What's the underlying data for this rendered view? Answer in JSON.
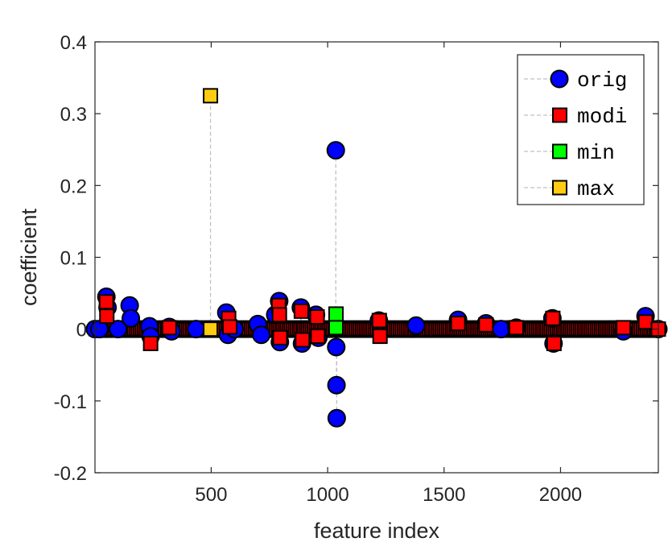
{
  "chart_data": {
    "type": "scatter",
    "subtype": "stem",
    "title": "",
    "xlabel": "feature index",
    "ylabel": "coefficient",
    "xlim": [
      1,
      2420
    ],
    "ylim": [
      -0.2,
      0.4
    ],
    "xticks": [
      500,
      1000,
      1500,
      2000
    ],
    "yticks": [
      -0.2,
      -0.1,
      0,
      0.1,
      0.2,
      0.3,
      0.4
    ],
    "xtick_labels": [
      "500",
      "1000",
      "1500",
      "2000"
    ],
    "ytick_labels": [
      "-0.2",
      "-0.1",
      "0",
      "0.1",
      "0.2",
      "0.3",
      "0.4"
    ],
    "grid": false,
    "legend_position": "top-right",
    "stem_color": "#c0c0c0",
    "series": [
      {
        "name": "orig",
        "marker": "circle",
        "color": "#0000ff",
        "points": [
          {
            "x": 1,
            "y": 0
          },
          {
            "x": 20,
            "y": 0
          },
          {
            "x": 50,
            "y": 0.045
          },
          {
            "x": 55,
            "y": 0.03
          },
          {
            "x": 100,
            "y": 0
          },
          {
            "x": 150,
            "y": 0.033
          },
          {
            "x": 155,
            "y": 0.015
          },
          {
            "x": 235,
            "y": 0.004
          },
          {
            "x": 240,
            "y": -0.01
          },
          {
            "x": 320,
            "y": 0.003
          },
          {
            "x": 330,
            "y": -0.003
          },
          {
            "x": 435,
            "y": 0
          },
          {
            "x": 565,
            "y": 0.023
          },
          {
            "x": 572,
            "y": -0.008
          },
          {
            "x": 600,
            "y": 0
          },
          {
            "x": 700,
            "y": 0.007
          },
          {
            "x": 715,
            "y": -0.008
          },
          {
            "x": 775,
            "y": 0.02
          },
          {
            "x": 792,
            "y": 0.039
          },
          {
            "x": 795,
            "y": -0.018
          },
          {
            "x": 885,
            "y": 0.03
          },
          {
            "x": 890,
            "y": -0.02
          },
          {
            "x": 950,
            "y": 0.02
          },
          {
            "x": 960,
            "y": -0.012
          },
          {
            "x": 1035,
            "y": 0.249
          },
          {
            "x": 1037,
            "y": -0.025
          },
          {
            "x": 1038,
            "y": -0.078
          },
          {
            "x": 1039,
            "y": -0.124
          },
          {
            "x": 1220,
            "y": 0.012
          },
          {
            "x": 1380,
            "y": 0.005
          },
          {
            "x": 1560,
            "y": 0.013
          },
          {
            "x": 1680,
            "y": 0.008
          },
          {
            "x": 1745,
            "y": 0
          },
          {
            "x": 1810,
            "y": 0.002
          },
          {
            "x": 1965,
            "y": 0.015
          },
          {
            "x": 1970,
            "y": -0.02
          },
          {
            "x": 2270,
            "y": -0.003
          },
          {
            "x": 2365,
            "y": 0.018
          },
          {
            "x": 2420,
            "y": 0
          }
        ]
      },
      {
        "name": "modi",
        "marker": "square",
        "color": "#ff0000",
        "points": [
          {
            "x": 50,
            "y": 0.038
          },
          {
            "x": 52,
            "y": 0.018
          },
          {
            "x": 240,
            "y": -0.02
          },
          {
            "x": 320,
            "y": 0.002
          },
          {
            "x": 575,
            "y": 0.015
          },
          {
            "x": 580,
            "y": 0.003
          },
          {
            "x": 790,
            "y": 0.033
          },
          {
            "x": 793,
            "y": 0.02
          },
          {
            "x": 796,
            "y": -0.012
          },
          {
            "x": 887,
            "y": 0.025
          },
          {
            "x": 892,
            "y": -0.015
          },
          {
            "x": 955,
            "y": 0.017
          },
          {
            "x": 958,
            "y": -0.01
          },
          {
            "x": 1222,
            "y": 0.012
          },
          {
            "x": 1225,
            "y": -0.01
          },
          {
            "x": 1560,
            "y": 0.008
          },
          {
            "x": 1680,
            "y": 0.006
          },
          {
            "x": 1810,
            "y": 0.002
          },
          {
            "x": 1967,
            "y": 0.015
          },
          {
            "x": 1972,
            "y": -0.02
          },
          {
            "x": 2270,
            "y": 0.002
          },
          {
            "x": 2365,
            "y": 0.01
          },
          {
            "x": 2420,
            "y": 0
          }
        ]
      },
      {
        "name": "min",
        "marker": "square",
        "color": "#00ff00",
        "points": [
          {
            "x": 1036,
            "y": 0.021
          },
          {
            "x": 1036,
            "y": 0.002
          }
        ]
      },
      {
        "name": "max",
        "marker": "square",
        "color": "#ffcc11",
        "points": [
          {
            "x": 497,
            "y": 0.325
          },
          {
            "x": 497,
            "y": 0
          }
        ]
      }
    ]
  }
}
